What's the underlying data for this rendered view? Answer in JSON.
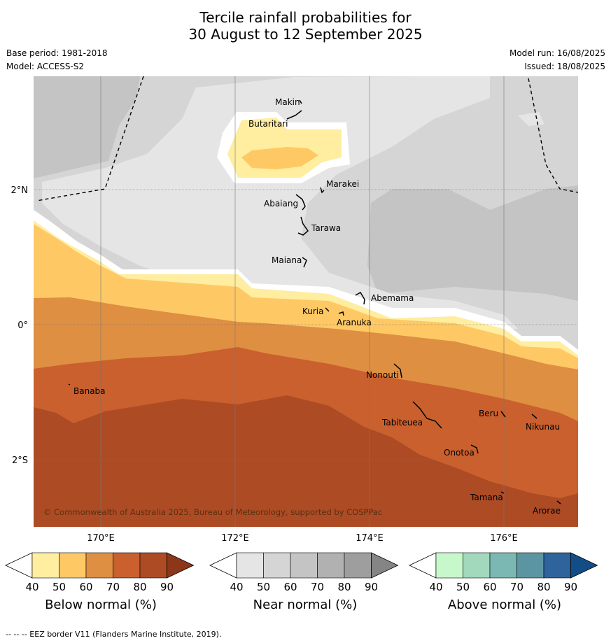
{
  "title": {
    "line1": "Tercile rainfall probabilities for",
    "line2": "30 August to 12 September 2025"
  },
  "meta": {
    "base_period": "Base period: 1981-2018",
    "model": "Model: ACCESS-S2",
    "model_run": "Model run: 16/08/2025",
    "issued": "Issued: 18/08/2025"
  },
  "map": {
    "lat_labels": [
      "2°N",
      "0°",
      "2°S"
    ],
    "lon_labels": [
      "170°E",
      "172°E",
      "174°E",
      "176°E"
    ],
    "places": [
      "Makin",
      "Butaritari",
      "Marakei",
      "Abaiang",
      "Tarawa",
      "Maiana",
      "Abemama",
      "Kuria",
      "Aranuka",
      "Nonouti",
      "Banaba",
      "Tabiteuea",
      "Beru",
      "Nikunau",
      "Onotoa",
      "Tamana",
      "Arorae"
    ],
    "copyright": "© Commonwealth of Australia 2025, Bureau of Meteorology, supported by COSPPac"
  },
  "colorbars": [
    {
      "name": "below",
      "title": "Below normal (%)",
      "ticks": [
        "40",
        "50",
        "60",
        "70",
        "80",
        "90"
      ],
      "colors": [
        "#ffeda0",
        "#fec965",
        "#de8f42",
        "#c9602e",
        "#ad4b25",
        "#8c3719"
      ]
    },
    {
      "name": "near",
      "title": "Near normal (%)",
      "ticks": [
        "40",
        "50",
        "60",
        "70",
        "80",
        "90"
      ],
      "colors": [
        "#e5e5e5",
        "#d5d5d5",
        "#c4c4c4",
        "#b1b1b1",
        "#9e9e9e",
        "#858585"
      ]
    },
    {
      "name": "above",
      "title": "Above normal (%)",
      "ticks": [
        "40",
        "50",
        "60",
        "70",
        "80",
        "90"
      ],
      "colors": [
        "#c7f8cc",
        "#a2d8bc",
        "#7bb8b4",
        "#5b95a2",
        "#2f639b",
        "#134d86"
      ]
    }
  ],
  "footnote": "--  --  -- EEZ border V11 (Flanders Marine Institute, 2019)."
}
